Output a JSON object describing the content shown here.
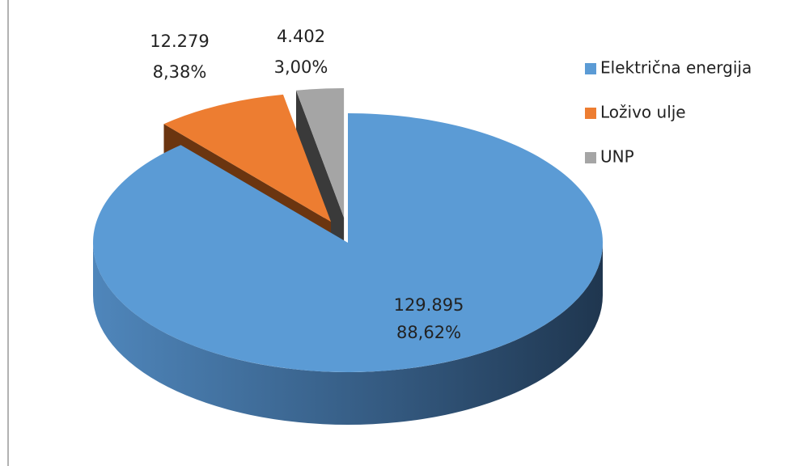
{
  "chart_data": {
    "type": "pie",
    "categories": [
      "Električna energija",
      "Loživo ulje",
      "UNP"
    ],
    "values": [
      129895,
      12279,
      4402
    ],
    "value_labels": [
      "129.895",
      "12.279",
      "4.402"
    ],
    "percentages": [
      88.62,
      8.38,
      3.0
    ],
    "percentage_labels": [
      "88,62%",
      "8,38%",
      "3,00%"
    ],
    "colors": [
      "#5b9bd5",
      "#ed7d31",
      "#a5a5a5"
    ],
    "legend": "right"
  }
}
